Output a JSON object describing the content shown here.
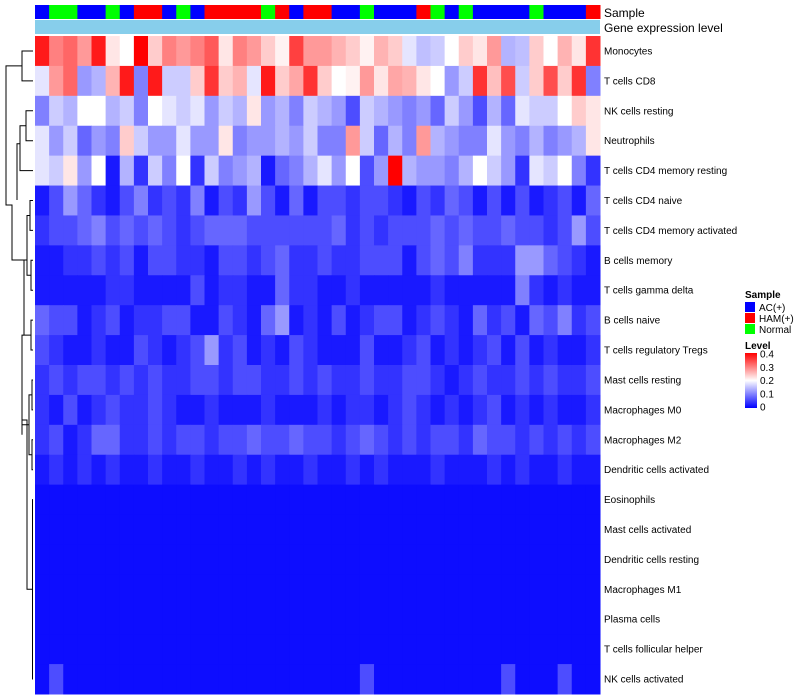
{
  "chart_data": {
    "type": "heatmap",
    "title": "",
    "annotations": [
      {
        "label": "Sample"
      },
      {
        "label": "Gene expression level"
      }
    ],
    "sample_groups": [
      "AC(+)",
      "HAM(+)",
      "Normal"
    ],
    "sample_group_colors": {
      "AC(+)": "#0000ff",
      "HAM(+)": "#ff0000",
      "Normal": "#00ff00"
    },
    "sample_annotation": [
      "AC(+)",
      "Normal",
      "Normal",
      "AC(+)",
      "AC(+)",
      "Normal",
      "AC(+)",
      "HAM(+)",
      "HAM(+)",
      "AC(+)",
      "Normal",
      "AC(+)",
      "HAM(+)",
      "HAM(+)",
      "HAM(+)",
      "HAM(+)",
      "Normal",
      "HAM(+)",
      "AC(+)",
      "HAM(+)",
      "HAM(+)",
      "AC(+)",
      "AC(+)",
      "Normal",
      "AC(+)",
      "AC(+)",
      "AC(+)",
      "HAM(+)",
      "Normal",
      "AC(+)",
      "Normal",
      "AC(+)",
      "AC(+)",
      "AC(+)",
      "AC(+)",
      "Normal",
      "AC(+)",
      "AC(+)",
      "AC(+)",
      "HAM(+)"
    ],
    "expression_annotation_color": "#87ceeb",
    "legend": {
      "sample_title": "Sample",
      "level_title": "Level",
      "level_ticks": [
        "0.4",
        "0.3",
        "0.2",
        "0.1",
        "0"
      ],
      "level_range": [
        0,
        0.4
      ],
      "color_low": "#0000ff",
      "color_mid": "#ffffff",
      "color_high": "#ff0000"
    },
    "rows": [
      "Monocytes",
      "T cells CD8",
      "NK cells resting",
      "Neutrophils",
      "T cells CD4 memory resting",
      "T cells CD4 naive",
      "T cells CD4 memory activated",
      "B cells memory",
      "T cells gamma delta",
      "B cells naive",
      "T cells regulatory  Tregs",
      "Mast cells resting",
      "Macrophages M0",
      "Macrophages M2",
      "Dendritic cells activated",
      "Eosinophils",
      "Mast cells activated",
      "Dendritic cells resting",
      "Macrophages M1",
      "Plasma cells",
      "T cells follicular helper",
      "NK cells activated"
    ],
    "values": [
      [
        0.38,
        0.3,
        0.32,
        0.28,
        0.38,
        0.22,
        0.2,
        0.4,
        0.24,
        0.3,
        0.28,
        0.3,
        0.33,
        0.22,
        0.3,
        0.28,
        0.24,
        0.21,
        0.35,
        0.28,
        0.28,
        0.26,
        0.24,
        0.21,
        0.26,
        0.24,
        0.18,
        0.15,
        0.16,
        0.2,
        0.24,
        0.22,
        0.28,
        0.14,
        0.15,
        0.24,
        0.2,
        0.26,
        0.22,
        0.36
      ],
      [
        0.18,
        0.28,
        0.32,
        0.12,
        0.14,
        0.26,
        0.38,
        0.1,
        0.38,
        0.16,
        0.16,
        0.24,
        0.36,
        0.24,
        0.26,
        0.18,
        0.38,
        0.24,
        0.27,
        0.36,
        0.24,
        0.2,
        0.21,
        0.28,
        0.22,
        0.27,
        0.26,
        0.22,
        0.2,
        0.12,
        0.16,
        0.36,
        0.25,
        0.34,
        0.16,
        0.24,
        0.34,
        0.24,
        0.36,
        0.1
      ],
      [
        0.1,
        0.16,
        0.14,
        0.2,
        0.2,
        0.14,
        0.16,
        0.1,
        0.2,
        0.18,
        0.16,
        0.18,
        0.12,
        0.16,
        0.14,
        0.22,
        0.12,
        0.14,
        0.1,
        0.16,
        0.14,
        0.12,
        0.06,
        0.16,
        0.14,
        0.12,
        0.1,
        0.12,
        0.08,
        0.16,
        0.12,
        0.06,
        0.14,
        0.08,
        0.18,
        0.16,
        0.16,
        0.2,
        0.24,
        0.22
      ],
      [
        0.18,
        0.12,
        0.16,
        0.08,
        0.12,
        0.1,
        0.24,
        0.16,
        0.12,
        0.12,
        0.18,
        0.12,
        0.12,
        0.22,
        0.1,
        0.12,
        0.12,
        0.14,
        0.12,
        0.16,
        0.1,
        0.1,
        0.28,
        0.16,
        0.08,
        0.14,
        0.1,
        0.28,
        0.14,
        0.12,
        0.1,
        0.1,
        0.18,
        0.12,
        0.1,
        0.14,
        0.1,
        0.12,
        0.14,
        0.22
      ],
      [
        0.18,
        0.16,
        0.22,
        0.12,
        0.2,
        0.02,
        0.14,
        0.04,
        0.16,
        0.1,
        0.2,
        0.04,
        0.16,
        0.1,
        0.12,
        0.14,
        0.02,
        0.08,
        0.1,
        0.14,
        0.18,
        0.12,
        0.2,
        0.06,
        0.12,
        0.4,
        0.14,
        0.12,
        0.12,
        0.1,
        0.14,
        0.2,
        0.16,
        0.12,
        0.04,
        0.18,
        0.16,
        0.2,
        0.1,
        0.04
      ],
      [
        0.02,
        0.06,
        0.12,
        0.08,
        0.04,
        0.02,
        0.06,
        0.1,
        0.04,
        0.06,
        0.04,
        0.1,
        0.02,
        0.06,
        0.04,
        0.12,
        0.06,
        0.02,
        0.08,
        0.02,
        0.06,
        0.06,
        0.04,
        0.06,
        0.06,
        0.04,
        0.02,
        0.06,
        0.04,
        0.08,
        0.06,
        0.02,
        0.06,
        0.02,
        0.06,
        0.02,
        0.04,
        0.06,
        0.02,
        0.08
      ],
      [
        0.04,
        0.06,
        0.06,
        0.08,
        0.1,
        0.06,
        0.08,
        0.06,
        0.08,
        0.06,
        0.04,
        0.06,
        0.08,
        0.08,
        0.08,
        0.06,
        0.06,
        0.06,
        0.06,
        0.06,
        0.06,
        0.08,
        0.04,
        0.06,
        0.04,
        0.06,
        0.06,
        0.06,
        0.08,
        0.06,
        0.08,
        0.06,
        0.06,
        0.08,
        0.06,
        0.06,
        0.04,
        0.06,
        0.12,
        0.06
      ],
      [
        0.02,
        0.02,
        0.04,
        0.04,
        0.06,
        0.04,
        0.06,
        0.02,
        0.06,
        0.06,
        0.04,
        0.04,
        0.02,
        0.06,
        0.06,
        0.04,
        0.06,
        0.08,
        0.04,
        0.04,
        0.06,
        0.04,
        0.04,
        0.06,
        0.06,
        0.06,
        0.02,
        0.06,
        0.08,
        0.06,
        0.1,
        0.04,
        0.04,
        0.04,
        0.12,
        0.12,
        0.08,
        0.06,
        0.04,
        0.02
      ],
      [
        0.02,
        0.02,
        0.02,
        0.02,
        0.02,
        0.04,
        0.04,
        0.02,
        0.02,
        0.02,
        0.02,
        0.06,
        0.02,
        0.04,
        0.04,
        0.02,
        0.02,
        0.08,
        0.04,
        0.04,
        0.02,
        0.02,
        0.04,
        0.02,
        0.02,
        0.02,
        0.02,
        0.02,
        0.04,
        0.02,
        0.02,
        0.02,
        0.02,
        0.02,
        0.1,
        0.04,
        0.02,
        0.04,
        0.02,
        0.02
      ],
      [
        0.08,
        0.06,
        0.06,
        0.02,
        0.04,
        0.06,
        0.02,
        0.04,
        0.04,
        0.06,
        0.06,
        0.02,
        0.02,
        0.06,
        0.04,
        0.02,
        0.08,
        0.12,
        0.02,
        0.04,
        0.02,
        0.06,
        0.02,
        0.04,
        0.06,
        0.06,
        0.02,
        0.04,
        0.06,
        0.04,
        0.02,
        0.08,
        0.04,
        0.06,
        0.02,
        0.08,
        0.06,
        0.1,
        0.04,
        0.06
      ],
      [
        0.06,
        0.04,
        0.02,
        0.02,
        0.04,
        0.02,
        0.02,
        0.06,
        0.04,
        0.02,
        0.04,
        0.06,
        0.12,
        0.04,
        0.06,
        0.02,
        0.04,
        0.02,
        0.06,
        0.04,
        0.02,
        0.02,
        0.02,
        0.06,
        0.02,
        0.02,
        0.04,
        0.06,
        0.02,
        0.04,
        0.02,
        0.04,
        0.06,
        0.02,
        0.06,
        0.02,
        0.04,
        0.02,
        0.02,
        0.04
      ],
      [
        0.04,
        0.06,
        0.04,
        0.06,
        0.06,
        0.04,
        0.06,
        0.04,
        0.06,
        0.04,
        0.04,
        0.06,
        0.06,
        0.04,
        0.06,
        0.06,
        0.04,
        0.04,
        0.06,
        0.04,
        0.06,
        0.04,
        0.04,
        0.06,
        0.04,
        0.04,
        0.06,
        0.06,
        0.04,
        0.02,
        0.04,
        0.06,
        0.04,
        0.04,
        0.06,
        0.04,
        0.06,
        0.04,
        0.04,
        0.06
      ],
      [
        0.04,
        0.02,
        0.06,
        0.02,
        0.04,
        0.06,
        0.04,
        0.04,
        0.06,
        0.04,
        0.02,
        0.02,
        0.04,
        0.02,
        0.02,
        0.02,
        0.04,
        0.02,
        0.02,
        0.02,
        0.04,
        0.02,
        0.04,
        0.04,
        0.02,
        0.04,
        0.06,
        0.04,
        0.02,
        0.04,
        0.02,
        0.04,
        0.06,
        0.02,
        0.04,
        0.02,
        0.04,
        0.02,
        0.02,
        0.04
      ],
      [
        0.04,
        0.06,
        0.02,
        0.04,
        0.08,
        0.08,
        0.04,
        0.04,
        0.06,
        0.04,
        0.06,
        0.06,
        0.04,
        0.06,
        0.06,
        0.08,
        0.06,
        0.06,
        0.08,
        0.06,
        0.06,
        0.04,
        0.06,
        0.08,
        0.06,
        0.04,
        0.06,
        0.04,
        0.06,
        0.06,
        0.04,
        0.08,
        0.06,
        0.06,
        0.04,
        0.06,
        0.04,
        0.06,
        0.04,
        0.06
      ],
      [
        0.02,
        0.04,
        0.02,
        0.04,
        0.02,
        0.04,
        0.02,
        0.02,
        0.04,
        0.02,
        0.02,
        0.04,
        0.02,
        0.02,
        0.04,
        0.02,
        0.04,
        0.02,
        0.02,
        0.04,
        0.02,
        0.02,
        0.04,
        0.02,
        0.04,
        0.02,
        0.02,
        0.02,
        0.04,
        0.02,
        0.02,
        0.02,
        0.04,
        0.02,
        0.04,
        0.02,
        0.02,
        0.04,
        0.02,
        0.02
      ],
      [
        0.01,
        0.01,
        0.01,
        0.01,
        0.01,
        0.01,
        0.01,
        0.01,
        0.01,
        0.01,
        0.01,
        0.01,
        0.01,
        0.01,
        0.01,
        0.01,
        0.01,
        0.01,
        0.01,
        0.01,
        0.01,
        0.01,
        0.01,
        0.01,
        0.01,
        0.01,
        0.01,
        0.01,
        0.01,
        0.01,
        0.01,
        0.01,
        0.01,
        0.01,
        0.01,
        0.01,
        0.01,
        0.01,
        0.01,
        0.01
      ],
      [
        0.01,
        0.01,
        0.01,
        0.01,
        0.01,
        0.01,
        0.01,
        0.01,
        0.01,
        0.01,
        0.01,
        0.01,
        0.01,
        0.01,
        0.01,
        0.01,
        0.01,
        0.01,
        0.01,
        0.01,
        0.01,
        0.01,
        0.01,
        0.01,
        0.01,
        0.01,
        0.01,
        0.01,
        0.01,
        0.01,
        0.01,
        0.01,
        0.01,
        0.01,
        0.01,
        0.01,
        0.01,
        0.01,
        0.01,
        0.01
      ],
      [
        0.01,
        0.01,
        0.01,
        0.01,
        0.01,
        0.01,
        0.01,
        0.01,
        0.01,
        0.01,
        0.01,
        0.01,
        0.01,
        0.01,
        0.01,
        0.01,
        0.01,
        0.01,
        0.01,
        0.01,
        0.01,
        0.01,
        0.01,
        0.01,
        0.01,
        0.01,
        0.01,
        0.01,
        0.01,
        0.01,
        0.01,
        0.01,
        0.01,
        0.01,
        0.01,
        0.01,
        0.01,
        0.01,
        0.01,
        0.01
      ],
      [
        0.01,
        0.01,
        0.01,
        0.01,
        0.01,
        0.01,
        0.01,
        0.01,
        0.01,
        0.01,
        0.01,
        0.01,
        0.01,
        0.01,
        0.01,
        0.01,
        0.01,
        0.01,
        0.01,
        0.01,
        0.01,
        0.01,
        0.01,
        0.01,
        0.01,
        0.01,
        0.01,
        0.01,
        0.01,
        0.01,
        0.01,
        0.01,
        0.01,
        0.01,
        0.01,
        0.01,
        0.01,
        0.01,
        0.01,
        0.01
      ],
      [
        0.01,
        0.01,
        0.01,
        0.01,
        0.01,
        0.01,
        0.01,
        0.01,
        0.01,
        0.01,
        0.01,
        0.01,
        0.01,
        0.01,
        0.01,
        0.01,
        0.01,
        0.01,
        0.01,
        0.01,
        0.01,
        0.01,
        0.01,
        0.01,
        0.01,
        0.01,
        0.01,
        0.01,
        0.01,
        0.01,
        0.01,
        0.01,
        0.01,
        0.01,
        0.01,
        0.01,
        0.01,
        0.01,
        0.01,
        0.01
      ],
      [
        0.01,
        0.01,
        0.01,
        0.01,
        0.01,
        0.01,
        0.01,
        0.01,
        0.01,
        0.01,
        0.01,
        0.01,
        0.01,
        0.01,
        0.01,
        0.01,
        0.01,
        0.01,
        0.01,
        0.01,
        0.01,
        0.01,
        0.01,
        0.01,
        0.01,
        0.01,
        0.01,
        0.01,
        0.01,
        0.01,
        0.01,
        0.01,
        0.01,
        0.01,
        0.01,
        0.01,
        0.01,
        0.01,
        0.01,
        0.01
      ],
      [
        0.01,
        0.06,
        0.01,
        0.01,
        0.01,
        0.01,
        0.01,
        0.01,
        0.01,
        0.01,
        0.01,
        0.01,
        0.01,
        0.01,
        0.01,
        0.01,
        0.01,
        0.01,
        0.01,
        0.01,
        0.01,
        0.01,
        0.01,
        0.06,
        0.01,
        0.01,
        0.01,
        0.01,
        0.01,
        0.01,
        0.01,
        0.01,
        0.01,
        0.06,
        0.01,
        0.01,
        0.01,
        0.06,
        0.01,
        0.01
      ]
    ]
  }
}
